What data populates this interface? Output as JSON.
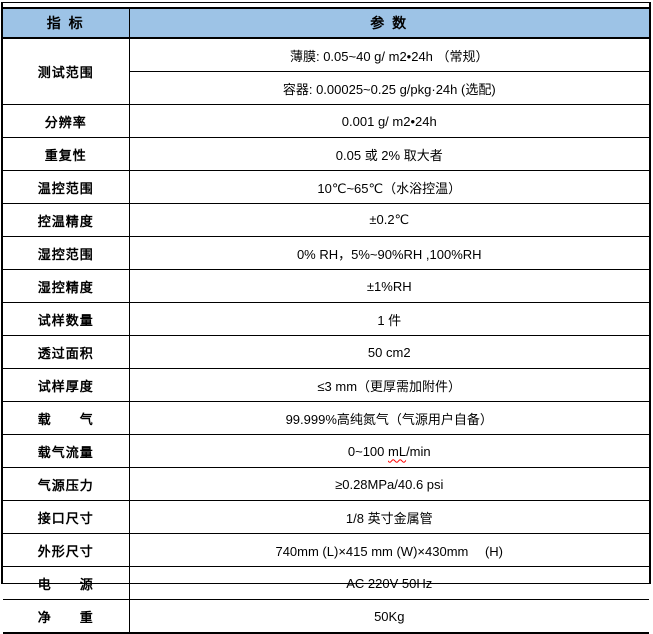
{
  "colors": {
    "header_bg": "#9DC3E6",
    "border": "#000000",
    "spellcheck_underline": "#FF0000",
    "text": "#000000"
  },
  "table": {
    "header": {
      "col1": "指 标",
      "col2": "参 数"
    },
    "rows": [
      {
        "label": "测试范围",
        "values": [
          "薄膜:  0.05~40 g/ m2•24h （常规）",
          "容器:  0.00025~0.25 g/pkg·24h (选配)"
        ]
      },
      {
        "label": "分辨率",
        "value": "0.001 g/ m2•24h"
      },
      {
        "label": "重复性",
        "value": "0.05 或 2%  取大者"
      },
      {
        "label": "温控范围",
        "value": "10℃~65℃（水浴控温）"
      },
      {
        "label": "控温精度",
        "value": "±0.2℃"
      },
      {
        "label": "湿控范围",
        "value": "0% RH，5%~90%RH ,100%RH"
      },
      {
        "label": "湿控精度",
        "value": "±1%RH"
      },
      {
        "label": "试样数量",
        "value": "1 件"
      },
      {
        "label": "透过面积",
        "value": "50 cm2"
      },
      {
        "label": "试样厚度",
        "value": "≤3 mm（更厚需加附件）"
      },
      {
        "label": "载　　气",
        "value": "99.999%高纯氮气（气源用户自备）"
      },
      {
        "label": "载气流量",
        "value_pre": "0~100 ",
        "value_wavy": "mL",
        "value_post": "/min"
      },
      {
        "label": "气源压力",
        "value": "≥0.28MPa/40.6 psi"
      },
      {
        "label": "接口尺寸",
        "value": "1/8 英寸金属管"
      },
      {
        "label": "外形尺寸",
        "value": "740mm (L)×415 mm (W)×430mm　 (H)"
      },
      {
        "label": "电　　源",
        "value": "AC 220V 50Hz"
      },
      {
        "label": "净　　重",
        "value": "50Kg"
      }
    ]
  }
}
